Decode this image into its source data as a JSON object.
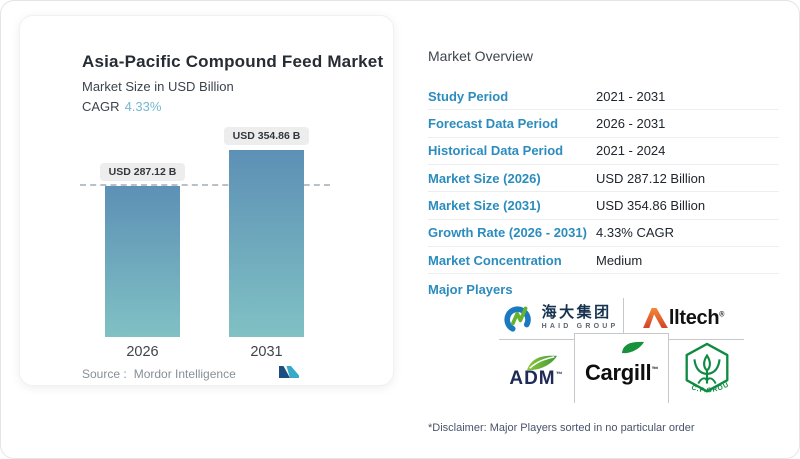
{
  "left_card": {
    "title": "Asia-Pacific Compound Feed Market",
    "subtitle": "Market Size in USD Billion",
    "cagr_label": "CAGR",
    "cagr_value": "4.33%",
    "source_label": "Source :",
    "source_value": "Mordor Intelligence",
    "brand_logo": "mordor-intelligence"
  },
  "chart_data": {
    "type": "bar",
    "title": "Asia-Pacific Compound Feed Market",
    "subtitle": "Market Size in USD Billion",
    "unit": "USD Billion",
    "categories": [
      "2026",
      "2031"
    ],
    "values": [
      287.12,
      354.86
    ],
    "bar_labels": [
      "USD 287.12 B",
      "USD 354.86 B"
    ],
    "cagr_percent": 4.33,
    "ylim": [
      0,
      354.86
    ],
    "reference_line": {
      "y": 287.12,
      "style": "dashed"
    },
    "legend": "none",
    "grid": "off",
    "bar_gradient_top": "#5d90b5",
    "bar_gradient_bottom": "#80c1c4"
  },
  "overview": {
    "heading": "Market Overview",
    "rows": [
      {
        "label": "Study Period",
        "value": "2021 - 2031"
      },
      {
        "label": "Forecast Data Period",
        "value": "2026 - 2031"
      },
      {
        "label": "Historical Data Period",
        "value": "2021 - 2024"
      },
      {
        "label": "Market Size (2026)",
        "value": "USD 287.12 Billion"
      },
      {
        "label": "Market Size (2031)",
        "value": "USD 354.86 Billion"
      },
      {
        "label": "Growth Rate (2026 - 2031)",
        "value": "4.33% CAGR"
      },
      {
        "label": "Market Concentration",
        "value": "Medium"
      }
    ],
    "major_players_label": "Major Players",
    "major_players": [
      {
        "name": "Haid Group",
        "text_cn": "海大集团",
        "text_en": "HAID GROUP"
      },
      {
        "name": "Alltech",
        "wordmark_rest": "lltech",
        "mark": "®"
      },
      {
        "name": "ADM",
        "wordmark": "ADM",
        "mark": "™"
      },
      {
        "name": "Cargill",
        "wordmark": "Cargill",
        "mark": "™"
      },
      {
        "name": "C.P. Group",
        "emblem_text": "C.P.GROUP"
      }
    ],
    "disclaimer": "*Disclaimer: Major Players sorted in no particular order"
  },
  "colors": {
    "row_label_blue": "#2b8cbe",
    "cagr_blue": "#76b7d3",
    "value_text": "#20262e",
    "chip_bg": "#ededee",
    "dashed_line": "#b9c0c7",
    "grid_border": "#c6c8ca",
    "haid_blue": "#1a79c0",
    "haid_green": "#63b32e",
    "alltech_orange": "#e8632a",
    "adm_green": "#6cb83b",
    "adm_navy": "#1d2b56",
    "cargill_green": "#17913c",
    "cp_green": "#0e8a42",
    "mordor_navy": "#1d4e80",
    "mordor_teal": "#38a9c8"
  }
}
